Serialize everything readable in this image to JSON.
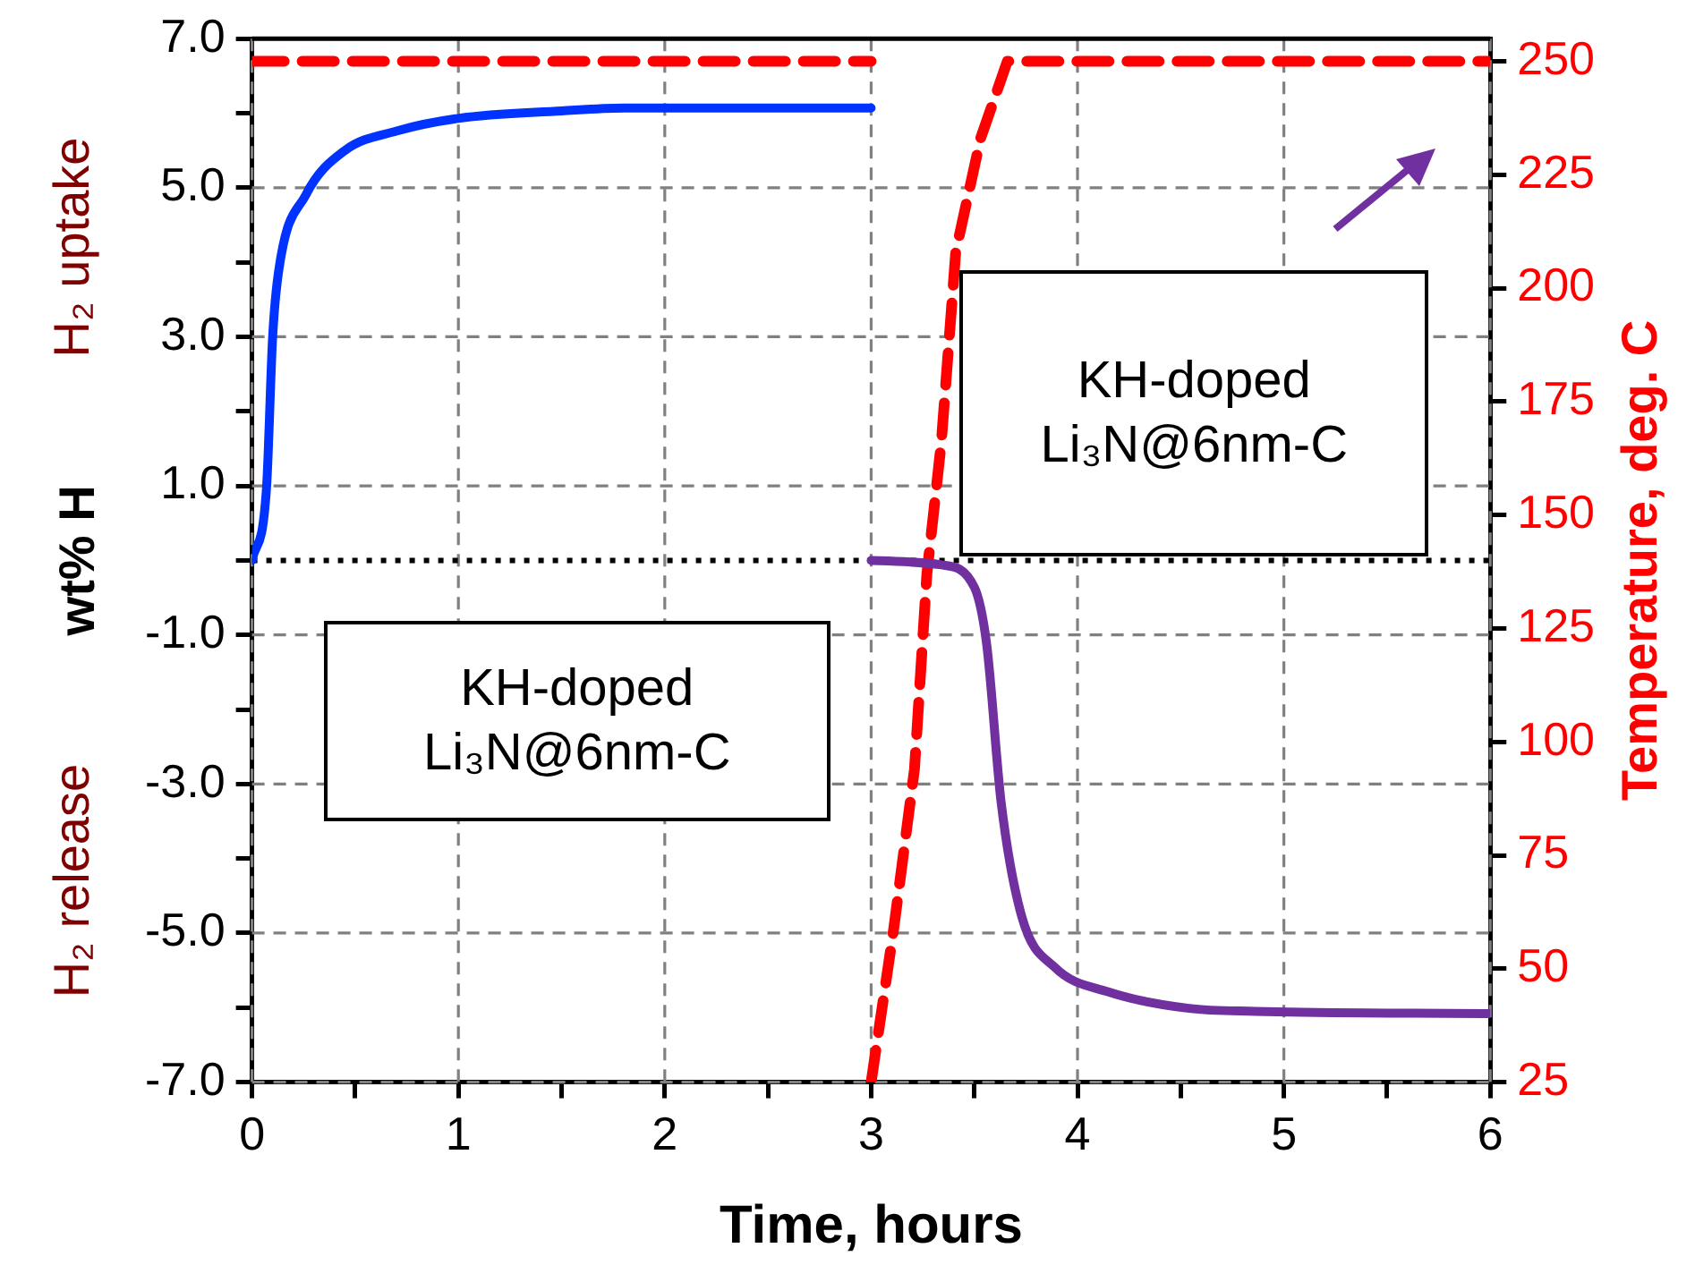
{
  "chart_data": {
    "type": "line",
    "xlabel": "Time, hours",
    "ylabel": "wt% H",
    "y2label": "Temperature, deg. C",
    "annotations": [
      "H₂ uptake",
      "H₂ release",
      "KH-doped Li₃N@6nm-C",
      "KH-doped Li₃N@6nm-C"
    ],
    "series": [
      {
        "color": "#0033ff",
        "x": [
          0,
          0.07,
          0.1,
          0.13,
          0.26,
          0.45,
          0.7,
          1.0,
          1.5,
          1.8,
          3.0
        ],
        "values": [
          0,
          0.96,
          3.0,
          3.9,
          4.9,
          5.5,
          5.76,
          5.93,
          6.03,
          6.07,
          6.07
        ]
      },
      {
        "color": "#7030a0",
        "x": [
          3.0,
          3.34,
          3.5,
          3.56,
          3.63,
          3.73,
          3.89,
          4.15,
          4.54,
          4.86,
          6.0
        ],
        "values": [
          0,
          -0.06,
          -0.36,
          -1.13,
          -3.25,
          -4.78,
          -5.46,
          -5.79,
          -6.01,
          -6.05,
          -6.08
        ]
      },
      {
        "color": "#ff0000",
        "axis": "y2",
        "line_style": "dashed",
        "x": [
          0,
          3.0
        ],
        "values": [
          250,
          250
        ]
      },
      {
        "color": "#ff0000",
        "axis": "y2",
        "line_style": "dashed",
        "x": [
          3.0,
          3.11,
          3.21,
          3.27,
          3.34,
          3.41,
          3.53,
          3.66,
          6.0
        ],
        "values": [
          25,
          59,
          94,
          137,
          166,
          208,
          233,
          250,
          250
        ]
      }
    ],
    "xlim": [
      0,
      6
    ],
    "xticks": [
      0,
      {
        "value": 0.5,
        "label": null
      },
      1,
      {
        "value": 1.5,
        "label": null
      },
      2,
      {
        "value": 2.5,
        "label": null
      },
      3,
      {
        "value": 3.5,
        "label": null
      },
      4,
      {
        "value": 4.5,
        "label": null
      },
      5,
      {
        "value": 5.5,
        "label": null
      },
      6
    ],
    "ylim": [
      -7,
      7
    ],
    "yticks": [
      {
        "value": -7,
        "label": "-7.0"
      },
      {
        "value": -6,
        "label": null
      },
      {
        "value": -5,
        "label": "-5.0"
      },
      {
        "value": -4,
        "label": null
      },
      {
        "value": -3,
        "label": "-3.0"
      },
      {
        "value": -2,
        "label": null
      },
      {
        "value": -1,
        "label": "-1.0"
      },
      {
        "value": 0,
        "label": null
      },
      {
        "value": 1,
        "label": "1.0"
      },
      {
        "value": 2,
        "label": null
      },
      {
        "value": 3,
        "label": "3.0"
      },
      {
        "value": 4,
        "label": null
      },
      {
        "value": 5,
        "label": "5.0"
      },
      {
        "value": 6,
        "label": null
      },
      {
        "value": 7,
        "label": "7.0"
      }
    ],
    "y2lim": [
      25,
      255
    ],
    "y2ticks": [
      25,
      50,
      75,
      100,
      125,
      150,
      175,
      200,
      225,
      250
    ],
    "ref_lines": [
      {
        "axis": "y",
        "value": 0,
        "color": "#000000",
        "line_style": "dotted"
      }
    ],
    "grid": true,
    "legend": false,
    "marker": "none"
  }
}
